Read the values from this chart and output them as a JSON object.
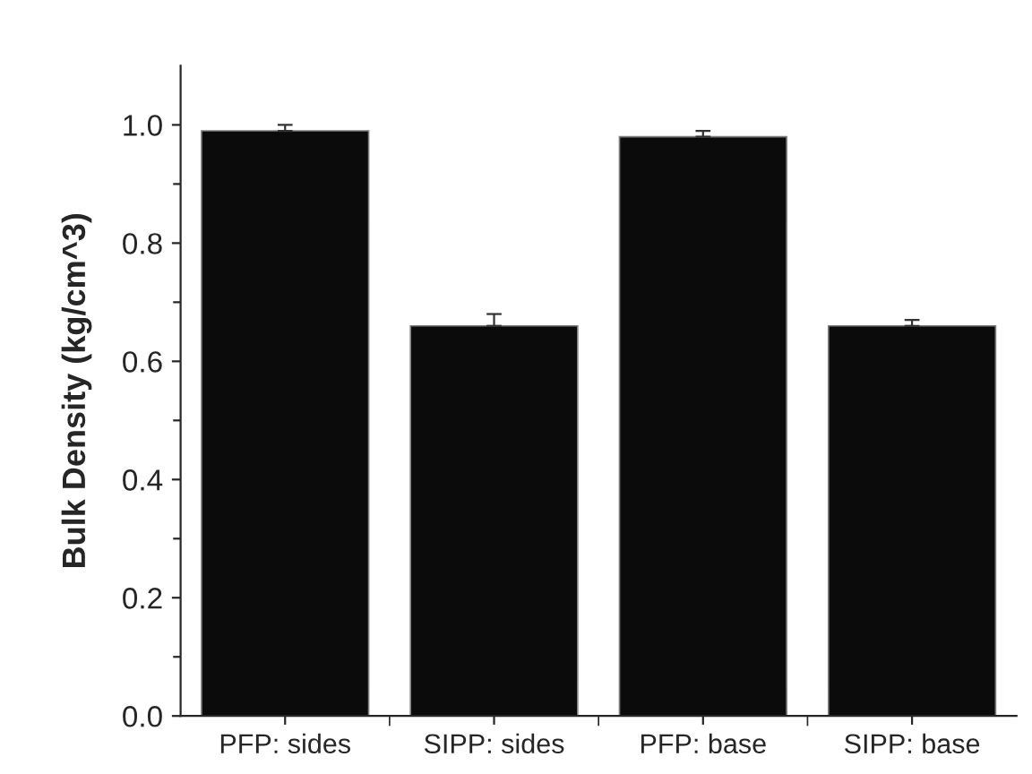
{
  "chart_data": {
    "type": "bar",
    "ylabel": "Bulk Density (kg/cm^3)",
    "categories": [
      "PFP: sides",
      "SIPP: sides",
      "PFP: base",
      "SIPP: base"
    ],
    "values": [
      0.99,
      0.66,
      0.98,
      0.66
    ],
    "errors": [
      0.01,
      0.02,
      0.01,
      0.01
    ],
    "color": "#0b0b0b",
    "ylim": [
      0,
      1.1
    ],
    "yticks": [
      {
        "value": 0,
        "label": "0.0"
      },
      {
        "value": 0.1,
        "label": null
      },
      {
        "value": 0.2,
        "label": "0.2"
      },
      {
        "value": 0.3,
        "label": null
      },
      {
        "value": 0.4,
        "label": "0.4"
      },
      {
        "value": 0.5,
        "label": null
      },
      {
        "value": 0.6,
        "label": "0.6"
      },
      {
        "value": 0.7,
        "label": null
      },
      {
        "value": 0.8,
        "label": "0.8"
      },
      {
        "value": 0.9,
        "label": null
      },
      {
        "value": 1.0,
        "label": "1.0"
      }
    ],
    "grid": false,
    "legend": false
  }
}
